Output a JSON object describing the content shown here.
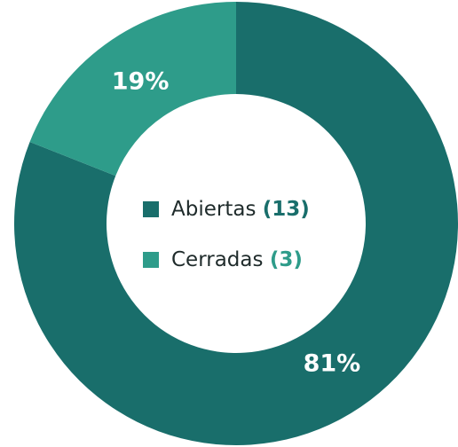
{
  "chart_data": {
    "type": "donut",
    "categories": [
      "Abiertas",
      "Cerradas"
    ],
    "values": [
      81,
      19
    ],
    "value_labels": [
      "81%",
      "19%"
    ],
    "counts": [
      13,
      3
    ],
    "count_labels": [
      "(13)",
      "(3)"
    ],
    "colors": [
      "#196e6b",
      "#2e9c8a"
    ]
  }
}
